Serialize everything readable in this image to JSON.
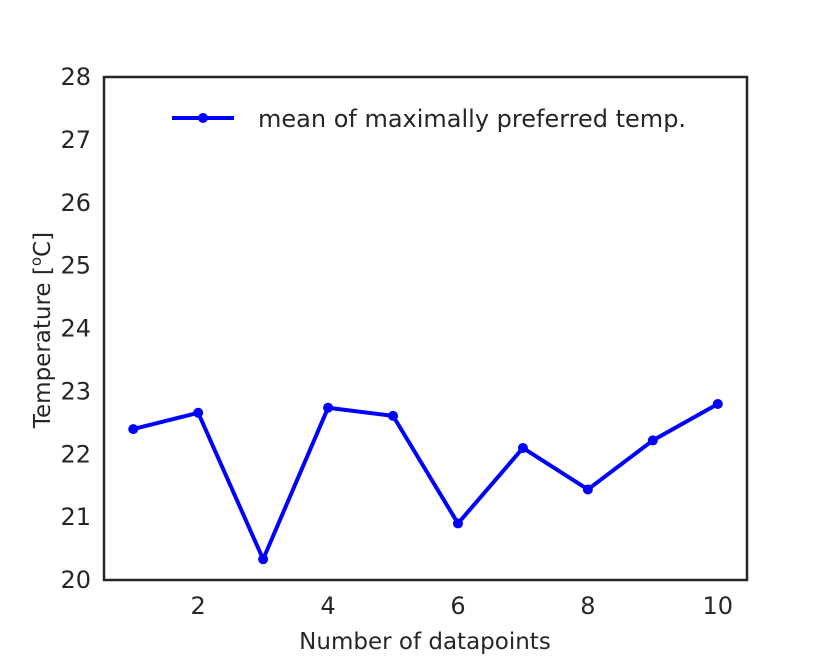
{
  "chart_data": {
    "type": "line",
    "title": "",
    "xlabel": "Number of datapoints",
    "ylabel_main": "Temperature [",
    "ylabel_sup": "o",
    "ylabel_end": "C]",
    "xlim": [
      0.55,
      10.45
    ],
    "ylim": [
      20,
      28
    ],
    "xticks": [
      2,
      4,
      6,
      8,
      10
    ],
    "yticks": [
      20,
      21,
      22,
      23,
      24,
      25,
      26,
      27,
      28
    ],
    "grid": false,
    "legend_position": "top-right",
    "series": [
      {
        "name": "mean of maximally preferred temp.",
        "color": "#0000ff",
        "marker": "circle",
        "x": [
          1,
          2,
          3,
          4,
          5,
          6,
          7,
          8,
          9,
          10
        ],
        "y": [
          22.4,
          22.66,
          20.33,
          22.74,
          22.61,
          20.9,
          22.1,
          21.44,
          22.22,
          22.8
        ]
      }
    ]
  }
}
